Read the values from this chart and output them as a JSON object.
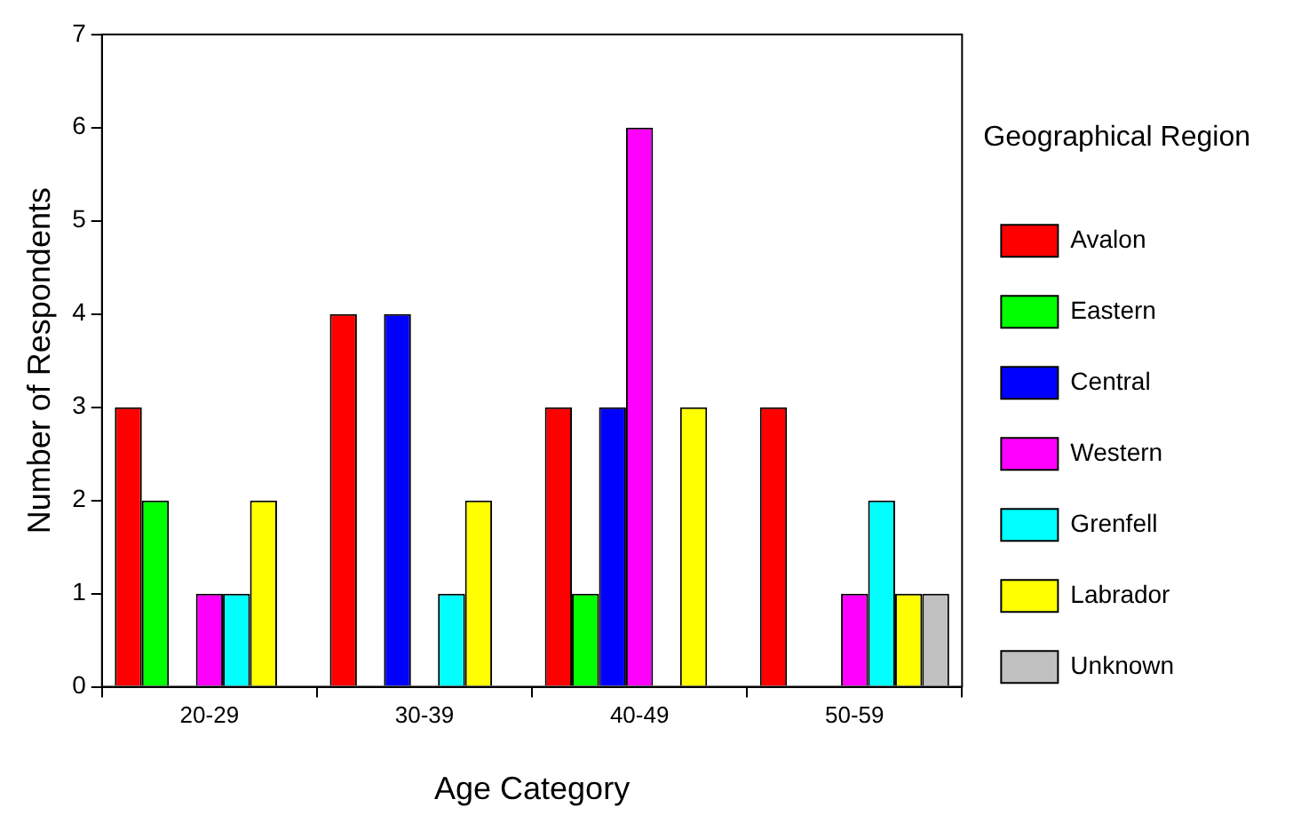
{
  "chart_data": {
    "type": "bar",
    "xlabel": "Age Category",
    "ylabel": "Number of Respondents",
    "legend_title": "Geographical Region",
    "categories": [
      "20-29",
      "30-39",
      "40-49",
      "50-59"
    ],
    "series": [
      {
        "name": "Avalon",
        "color": "#ff0000",
        "values": [
          3,
          4,
          3,
          3
        ]
      },
      {
        "name": "Eastern",
        "color": "#00ff00",
        "values": [
          2,
          0,
          1,
          0
        ]
      },
      {
        "name": "Central",
        "color": "#0000ff",
        "values": [
          0,
          4,
          3,
          0
        ]
      },
      {
        "name": "Western",
        "color": "#ff00ff",
        "values": [
          1,
          0,
          6,
          1
        ]
      },
      {
        "name": "Grenfell",
        "color": "#00ffff",
        "values": [
          1,
          1,
          0,
          2
        ]
      },
      {
        "name": "Labrador",
        "color": "#ffff00",
        "values": [
          2,
          2,
          3,
          1
        ]
      },
      {
        "name": "Unknown",
        "color": "#c0c0c0",
        "values": [
          0,
          0,
          0,
          1
        ]
      }
    ],
    "ylim": [
      0,
      7
    ],
    "yticks": [
      0,
      1,
      2,
      3,
      4,
      5,
      6,
      7
    ],
    "grid": false,
    "legend": "right"
  }
}
